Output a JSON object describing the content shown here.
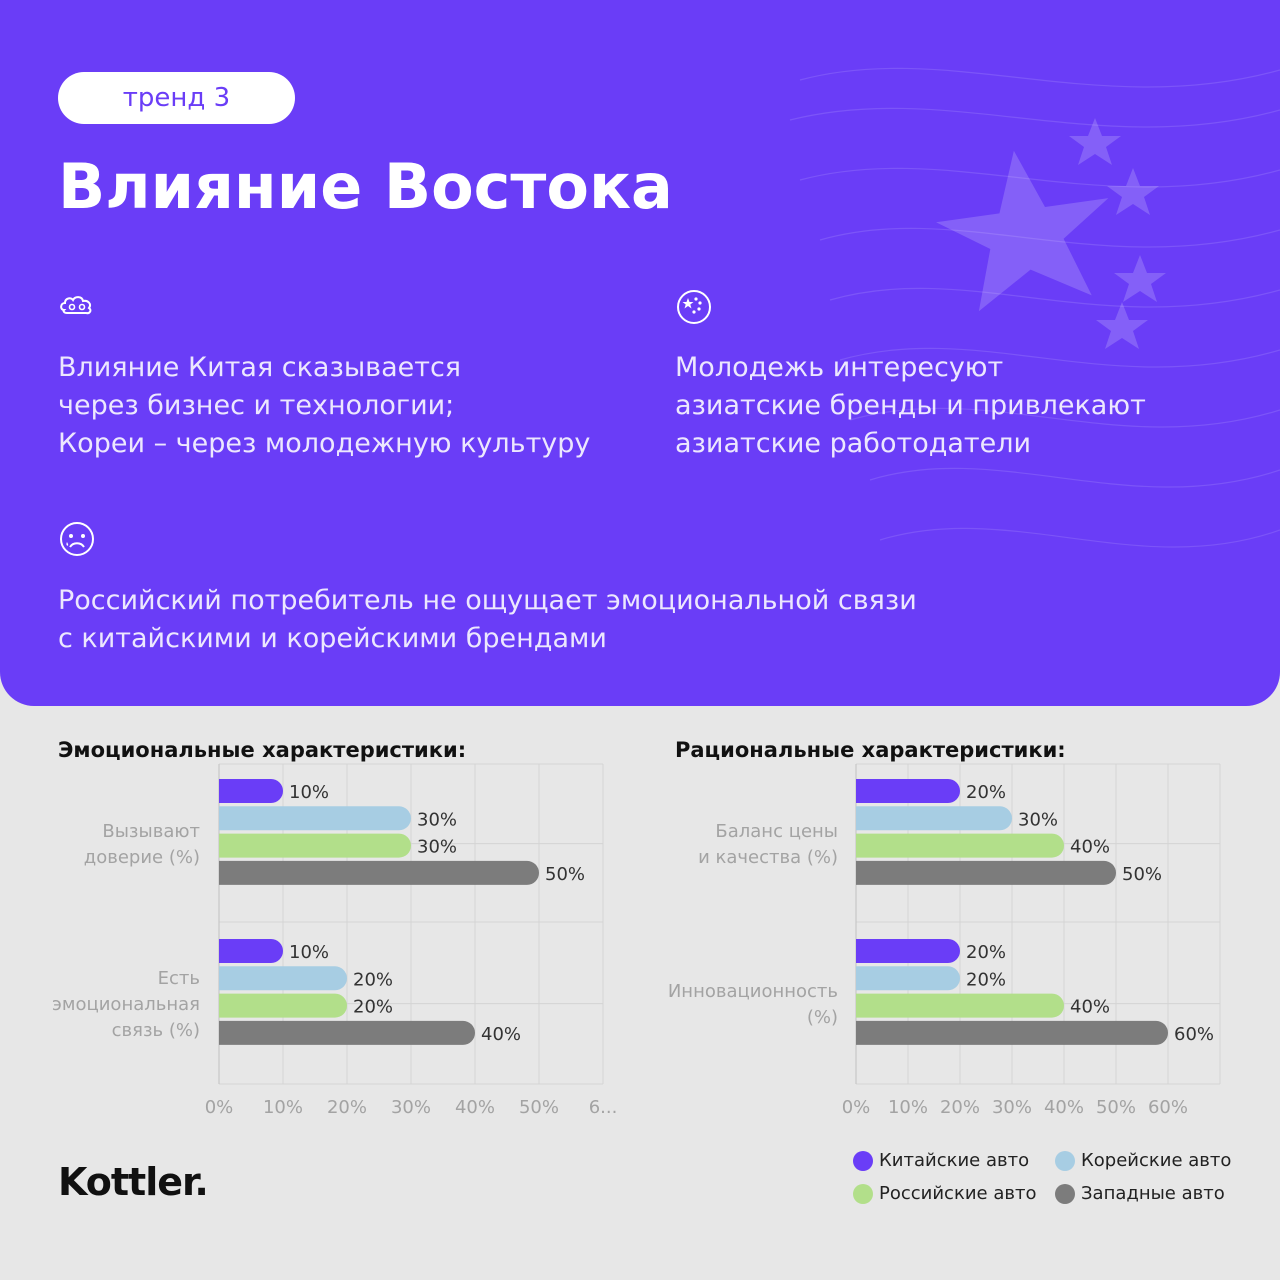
{
  "hero": {
    "badge": "тренд 3",
    "title": "Влияние Востока",
    "points": [
      {
        "icon": "cloud-icon",
        "text": "Влияние Китая сказывается\nчерез бизнес и технологии;\nКореи – через молодежную культуру"
      },
      {
        "icon": "stars-circle-icon",
        "text": "Молодежь интересуют\nазиатские бренды и привлекают\nазиатские работодатели"
      },
      {
        "icon": "sad-face-icon",
        "text": "Российский потребитель не ощущает эмоциональной связи\nс китайскими и корейскими брендами"
      }
    ]
  },
  "colors": {
    "brand_purple": "#6a3df7",
    "chinese": "#6a3df7",
    "korean": "#a7cde3",
    "russian": "#b2df8a",
    "western": "#7c7c7c"
  },
  "chart_data": [
    {
      "type": "bar",
      "orientation": "horizontal",
      "title": "Эмоциональные характеристики:",
      "categories": [
        "Вызывают\nдоверие (%)",
        "Есть\nэмоциональная\nсвязь (%)"
      ],
      "series": [
        {
          "name": "Китайские авто",
          "values": [
            10,
            10
          ]
        },
        {
          "name": "Корейские авто",
          "values": [
            30,
            20
          ]
        },
        {
          "name": "Российские авто",
          "values": [
            30,
            20
          ]
        },
        {
          "name": "Западные авто",
          "values": [
            50,
            40
          ]
        }
      ],
      "xticks": [
        "0%",
        "10%",
        "20%",
        "30%",
        "40%",
        "50%",
        "6..."
      ],
      "xlim": [
        0,
        60
      ],
      "grid": true
    },
    {
      "type": "bar",
      "orientation": "horizontal",
      "title": "Рациональные характеристики:",
      "categories": [
        "Баланс цены\nи качества (%)",
        "Инновационность\n(%)"
      ],
      "series": [
        {
          "name": "Китайские авто",
          "values": [
            20,
            20
          ]
        },
        {
          "name": "Корейские авто",
          "values": [
            30,
            20
          ]
        },
        {
          "name": "Российские авто",
          "values": [
            40,
            40
          ]
        },
        {
          "name": "Западные авто",
          "values": [
            50,
            60
          ]
        }
      ],
      "xticks": [
        "0%",
        "10%",
        "20%",
        "30%",
        "40%",
        "50%",
        "60%"
      ],
      "xlim": [
        0,
        70
      ],
      "grid": true
    }
  ],
  "legend": {
    "position": "bottom-right",
    "items": [
      "Китайские авто",
      "Корейские авто",
      "Российские авто",
      "Западные авто"
    ]
  },
  "brand": "Kottler."
}
